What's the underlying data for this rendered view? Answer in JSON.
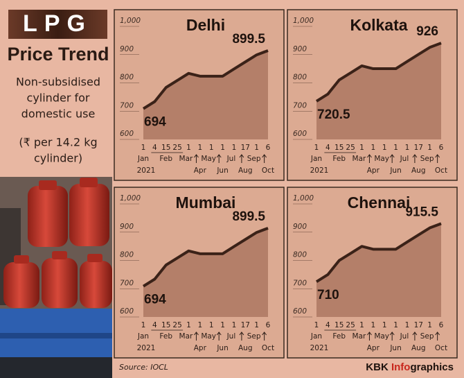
{
  "header": {
    "title": "LPG",
    "subtitle": "Price Trend",
    "description": [
      "Non-subsidised",
      "cylinder for",
      "domestic use"
    ],
    "unit": [
      "(₹ per 14.2 kg",
      "cylinder)"
    ]
  },
  "footer": {
    "source": "Source: IOCL",
    "credit": {
      "prefix": "KBK",
      "highlight": "Info",
      "suffix": "graphics"
    }
  },
  "chart_data": [
    {
      "type": "area",
      "title": "Delhi",
      "color": "#b47f69",
      "line_color": "#3b2218",
      "categories": [
        "1",
        "4",
        "15",
        "25",
        "1",
        "1",
        "1",
        "1",
        "1",
        "17",
        "1",
        "6"
      ],
      "months": [
        "Jan",
        null,
        "Feb",
        null,
        "Mar",
        "Apr",
        "May",
        "Jun",
        "Jul",
        "Aug",
        "Sep",
        "Oct"
      ],
      "year": "2021",
      "values": [
        694,
        719,
        769,
        794,
        819,
        809,
        809,
        809,
        834.5,
        859.5,
        884.5,
        899.5
      ],
      "ylim": [
        600,
        1000
      ],
      "yticks": [
        600,
        700,
        800,
        900,
        {
          "value": 1000,
          "label": "1,000"
        }
      ]
    },
    {
      "type": "area",
      "title": "Kolkata",
      "color": "#b47f69",
      "line_color": "#3b2218",
      "categories": [
        "1",
        "4",
        "15",
        "25",
        "1",
        "1",
        "1",
        "1",
        "1",
        "17",
        "1",
        "6"
      ],
      "months": [
        "Jan",
        null,
        "Feb",
        null,
        "Mar",
        "Apr",
        "May",
        "Jun",
        "Jul",
        "Aug",
        "Sep",
        "Oct"
      ],
      "year": "2021",
      "values": [
        720.5,
        745.5,
        795.5,
        820.5,
        845.5,
        835.5,
        835.5,
        835.5,
        861,
        886,
        911,
        926
      ],
      "ylim": [
        600,
        1000
      ],
      "yticks": [
        600,
        700,
        800,
        900,
        {
          "value": 1000,
          "label": "1,000"
        }
      ]
    },
    {
      "type": "area",
      "title": "Mumbai",
      "color": "#b47f69",
      "line_color": "#3b2218",
      "categories": [
        "1",
        "4",
        "15",
        "25",
        "1",
        "1",
        "1",
        "1",
        "1",
        "17",
        "1",
        "6"
      ],
      "months": [
        "Jan",
        null,
        "Feb",
        null,
        "Mar",
        "Apr",
        "May",
        "Jun",
        "Jul",
        "Aug",
        "Sep",
        "Oct"
      ],
      "year": "2021",
      "values": [
        694,
        719,
        769,
        794,
        819,
        809,
        809,
        809,
        834.5,
        859.5,
        884.5,
        899.5
      ],
      "ylim": [
        600,
        1000
      ],
      "yticks": [
        600,
        700,
        800,
        900,
        {
          "value": 1000,
          "label": "1,000"
        }
      ]
    },
    {
      "type": "area",
      "title": "Chennai",
      "color": "#b47f69",
      "line_color": "#3b2218",
      "categories": [
        "1",
        "4",
        "15",
        "25",
        "1",
        "1",
        "1",
        "1",
        "1",
        "17",
        "1",
        "6"
      ],
      "months": [
        "Jan",
        null,
        "Feb",
        null,
        "Mar",
        "Apr",
        "May",
        "Jun",
        "Jul",
        "Aug",
        "Sep",
        "Oct"
      ],
      "year": "2021",
      "values": [
        710,
        735,
        785,
        810,
        835,
        825,
        825,
        825,
        850.5,
        875.5,
        900.5,
        915.5
      ],
      "ylim": [
        600,
        1000
      ],
      "yticks": [
        600,
        700,
        800,
        900,
        {
          "value": 1000,
          "label": "1,000"
        }
      ]
    }
  ]
}
